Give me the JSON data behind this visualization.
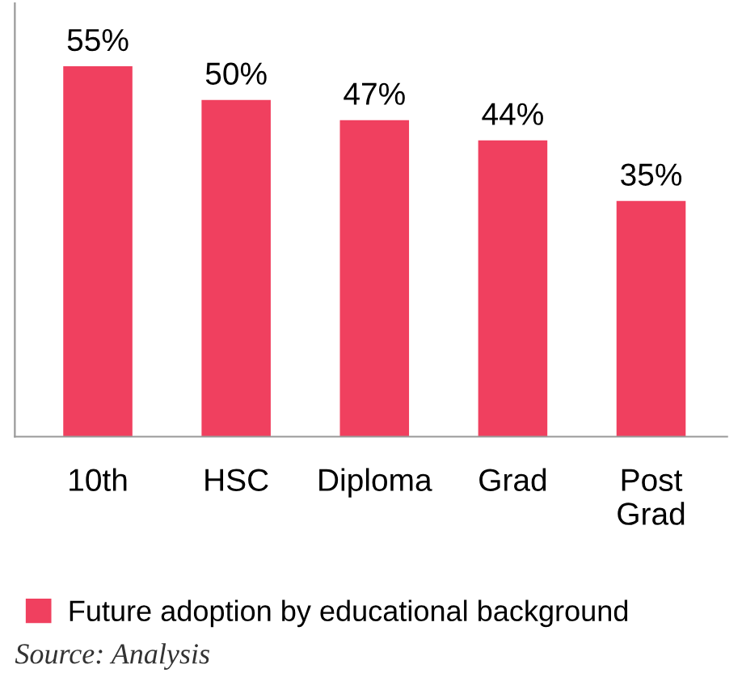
{
  "chart_data": {
    "type": "bar",
    "categories": [
      "10th",
      "HSC",
      "Diploma",
      "Grad",
      "Post\nGrad"
    ],
    "series": [
      {
        "name": "Future adoption by educational background",
        "color": "#f0405f",
        "values": [
          55,
          50,
          47,
          44,
          35
        ],
        "value_labels": [
          "55%",
          "50%",
          "47%",
          "44%",
          "35%"
        ]
      }
    ],
    "legend": "bottom",
    "grid": false,
    "annotations": [
      "Source: Analysis"
    ]
  }
}
